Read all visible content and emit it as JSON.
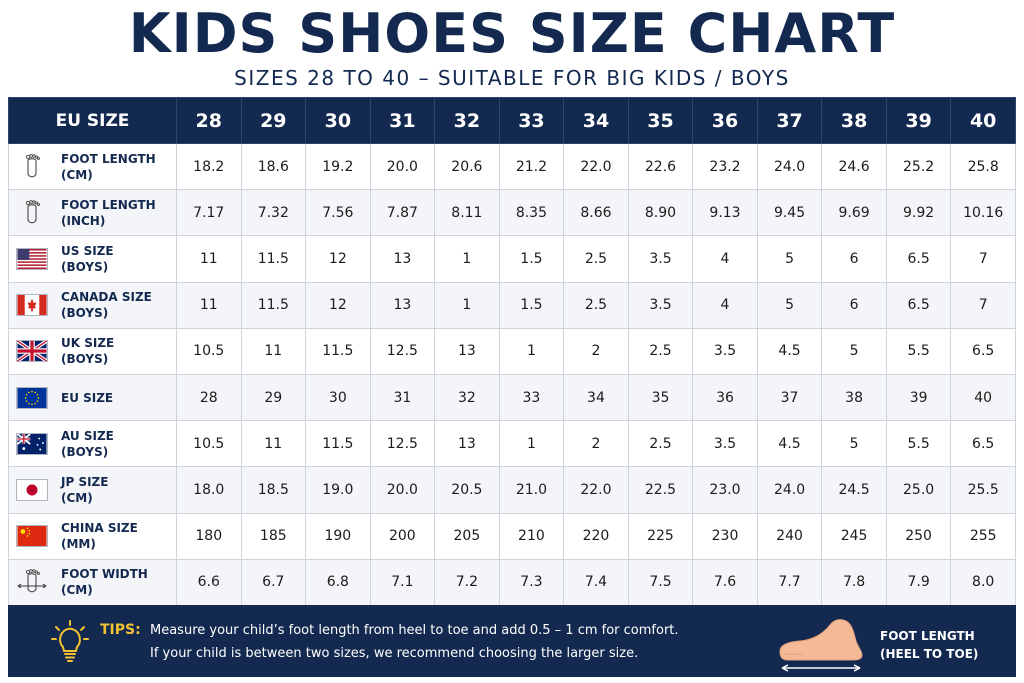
{
  "title": "KIDS SHOES SIZE CHART",
  "subtitle": "SIZES 28 TO 40 – SUITABLE FOR BIG KIDS / BOYS",
  "header": {
    "corner": "EU SIZE",
    "sizes": [
      "28",
      "29",
      "30",
      "31",
      "32",
      "33",
      "34",
      "35",
      "36",
      "37",
      "38",
      "39",
      "40"
    ]
  },
  "rows": [
    {
      "icon": "foot-outline-icon",
      "label1": "FOOT LENGTH",
      "label2": "(CM)",
      "values": [
        "18.2",
        "18.6",
        "19.2",
        "20.0",
        "20.6",
        "21.2",
        "22.0",
        "22.6",
        "23.2",
        "24.0",
        "24.6",
        "25.2",
        "25.8"
      ]
    },
    {
      "icon": "foot-outline-icon",
      "label1": "FOOT LENGTH",
      "label2": "(INCH)",
      "values": [
        "7.17",
        "7.32",
        "7.56",
        "7.87",
        "8.11",
        "8.35",
        "8.66",
        "8.90",
        "9.13",
        "9.45",
        "9.69",
        "9.92",
        "10.16"
      ]
    },
    {
      "icon": "us-flag-icon",
      "label1": "US SIZE",
      "label2": "(BOYS)",
      "values": [
        "11",
        "11.5",
        "12",
        "13",
        "1",
        "1.5",
        "2.5",
        "3.5",
        "4",
        "5",
        "6",
        "6.5",
        "7"
      ]
    },
    {
      "icon": "canada-flag-icon",
      "label1": "CANADA SIZE",
      "label2": "(BOYS)",
      "values": [
        "11",
        "11.5",
        "12",
        "13",
        "1",
        "1.5",
        "2.5",
        "3.5",
        "4",
        "5",
        "6",
        "6.5",
        "7"
      ]
    },
    {
      "icon": "uk-flag-icon",
      "label1": "UK SIZE",
      "label2": "(BOYS)",
      "values": [
        "10.5",
        "11",
        "11.5",
        "12.5",
        "13",
        "1",
        "2",
        "2.5",
        "3.5",
        "4.5",
        "5",
        "5.5",
        "6.5"
      ]
    },
    {
      "icon": "eu-flag-icon",
      "label1": "EU SIZE",
      "label2": "",
      "values": [
        "28",
        "29",
        "30",
        "31",
        "32",
        "33",
        "34",
        "35",
        "36",
        "37",
        "38",
        "39",
        "40"
      ]
    },
    {
      "icon": "au-flag-icon",
      "label1": "AU SIZE",
      "label2": "(BOYS)",
      "values": [
        "10.5",
        "11",
        "11.5",
        "12.5",
        "13",
        "1",
        "2",
        "2.5",
        "3.5",
        "4.5",
        "5",
        "5.5",
        "6.5"
      ]
    },
    {
      "icon": "japan-flag-icon",
      "label1": "JP SIZE",
      "label2": "(CM)",
      "values": [
        "18.0",
        "18.5",
        "19.0",
        "20.0",
        "20.5",
        "21.0",
        "22.0",
        "22.5",
        "23.0",
        "24.0",
        "24.5",
        "25.0",
        "25.5"
      ]
    },
    {
      "icon": "china-flag-icon",
      "label1": "CHINA SIZE",
      "label2": "(MM)",
      "values": [
        "180",
        "185",
        "190",
        "200",
        "205",
        "210",
        "220",
        "225",
        "230",
        "240",
        "245",
        "250",
        "255"
      ]
    },
    {
      "icon": "foot-width-icon",
      "label1": "FOOT WIDTH",
      "label2": "(CM)",
      "values": [
        "6.6",
        "6.7",
        "6.8",
        "7.1",
        "7.2",
        "7.3",
        "7.4",
        "7.5",
        "7.6",
        "7.7",
        "7.8",
        "7.9",
        "8.0"
      ]
    }
  ],
  "footer": {
    "tips_label": "TIPS:",
    "tip1": "Measure your child’s foot length from heel to toe and add 0.5 – 1 cm for comfort.",
    "tip2": "If your child is between two sizes, we recommend choosing the larger size.",
    "caption1": "FOOT LENGTH",
    "caption2": "(HEEL TO TOE)"
  },
  "colors": {
    "navy": "#13294f",
    "tips_yellow": "#f2c230",
    "row_alt": "#f3f5f8",
    "skin": "#f4b995"
  }
}
